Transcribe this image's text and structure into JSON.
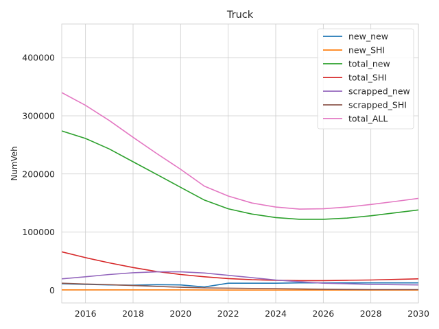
{
  "chart_data": {
    "type": "line",
    "title": "Truck",
    "xlabel": "",
    "ylabel": "NumVeh",
    "xlim": [
      2015,
      2030
    ],
    "ylim": [
      -22000,
      458000
    ],
    "xticks": [
      2016,
      2018,
      2020,
      2022,
      2024,
      2026,
      2028,
      2030
    ],
    "xtick_labels": [
      "2016",
      "2018",
      "2020",
      "2022",
      "2024",
      "2026",
      "2028",
      "2030"
    ],
    "yticks": [
      0,
      100000,
      200000,
      300000,
      400000
    ],
    "ytick_labels": [
      "0",
      "100000",
      "200000",
      "300000",
      "400000"
    ],
    "grid": true,
    "legend_position": "top-right",
    "x": [
      2015,
      2016,
      2017,
      2018,
      2019,
      2020,
      2021,
      2022,
      2023,
      2024,
      2025,
      2026,
      2027,
      2028,
      2029,
      2030
    ],
    "series": [
      {
        "name": "new_new",
        "color": "#1f77b4",
        "values": [
          11000,
          10000,
          9000,
          8500,
          9500,
          9000,
          5500,
          12000,
          12000,
          12000,
          12500,
          12500,
          12500,
          12500,
          12500,
          12500
        ]
      },
      {
        "name": "new_SHI",
        "color": "#ff7f0e",
        "values": [
          500,
          500,
          500,
          500,
          500,
          500,
          300,
          200,
          200,
          200,
          200,
          200,
          200,
          200,
          200,
          200
        ]
      },
      {
        "name": "total_new",
        "color": "#2ca02c",
        "values": [
          274000,
          261000,
          243000,
          221000,
          199000,
          177000,
          155000,
          140000,
          131000,
          125000,
          122000,
          122000,
          124000,
          128000,
          133000,
          138000
        ]
      },
      {
        "name": "total_SHI",
        "color": "#d62728",
        "values": [
          66000,
          56000,
          47000,
          39000,
          32000,
          27000,
          23000,
          20000,
          18000,
          17000,
          16500,
          16500,
          17000,
          17500,
          18500,
          19500
        ]
      },
      {
        "name": "scrapped_new",
        "color": "#9467bd",
        "values": [
          19500,
          23000,
          27000,
          30000,
          31500,
          31500,
          29500,
          25500,
          21500,
          17500,
          14500,
          12000,
          11000,
          10000,
          9500,
          9000
        ]
      },
      {
        "name": "scrapped_SHI",
        "color": "#8c564b",
        "values": [
          12000,
          10500,
          9500,
          8000,
          6500,
          5000,
          4000,
          3500,
          3000,
          2500,
          2000,
          1500,
          1200,
          1000,
          1000,
          1000
        ]
      },
      {
        "name": "total_ALL",
        "color": "#e377c2",
        "values": [
          340000,
          318000,
          292000,
          263000,
          235000,
          208000,
          179000,
          162000,
          150000,
          143000,
          139500,
          140000,
          143000,
          147500,
          152500,
          158000
        ]
      }
    ]
  }
}
